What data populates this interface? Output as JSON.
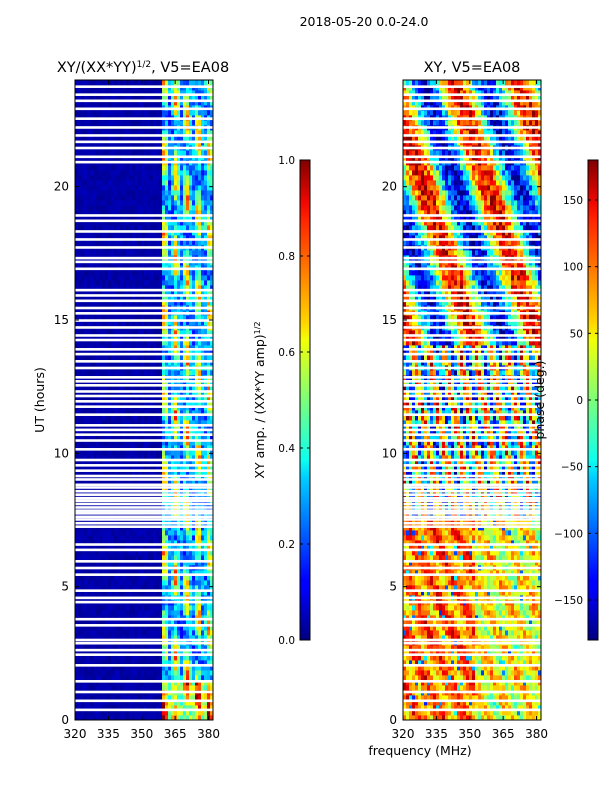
{
  "suptitle": "2018-05-20 0.0-24.0",
  "colors": {
    "white_gap": "#ffffff",
    "axis": "#000000"
  },
  "chart_data": [
    {
      "type": "heatmap",
      "title_main": "XY/(XX*YY)",
      "title_sup": "1/2",
      "title_tail": ", V5=EA08",
      "xlabel": "",
      "ylabel": "UT (hours)",
      "xlim": [
        320,
        382
      ],
      "ylim": [
        0,
        24
      ],
      "xticks": [
        320,
        335,
        350,
        365,
        380
      ],
      "yticks": [
        0,
        5,
        10,
        15,
        20
      ],
      "colorbar": {
        "label_main": "XY amp. / (XX*YY amp)",
        "label_sup": "1/2",
        "range": [
          0.0,
          1.0
        ],
        "ticks": [
          "0.0",
          "0.2",
          "0.4",
          "0.6",
          "0.8",
          "1.0"
        ],
        "tick_values": [
          0.0,
          0.2,
          0.4,
          0.6,
          0.8,
          1.0
        ]
      }
    },
    {
      "type": "heatmap",
      "title": "XY, V5=EA08",
      "xlabel": "frequency (MHz)",
      "ylabel": "",
      "xlim": [
        320,
        382
      ],
      "ylim": [
        0,
        24
      ],
      "xticks": [
        320,
        335,
        350,
        365,
        380
      ],
      "yticks": [
        0,
        5,
        10,
        15,
        20
      ],
      "colorbar": {
        "label": "phase (deg.)",
        "range": [
          -180,
          180
        ],
        "ticks": [
          "150",
          "100",
          "50",
          "0",
          "−50",
          "−100",
          "−150"
        ],
        "tick_values": [
          150,
          100,
          50,
          0,
          -50,
          -100,
          -150
        ]
      }
    }
  ],
  "flagged_hours": [
    0.38,
    0.72,
    1.05,
    1.45,
    2.05,
    2.45,
    2.62,
    2.88,
    3.0,
    3.55,
    3.78,
    4.42,
    4.58,
    4.85,
    5.45,
    5.7,
    5.95,
    6.38,
    6.58,
    7.25,
    7.38,
    7.52,
    7.62,
    7.75,
    7.85,
    7.97,
    8.1,
    8.22,
    8.32,
    8.45,
    8.58,
    8.72,
    8.82,
    9.02,
    9.15,
    9.35,
    9.55,
    9.75,
    10.15,
    10.48,
    10.7,
    10.88,
    11.05,
    11.45,
    11.75,
    11.95,
    12.15,
    12.32,
    12.55,
    12.7,
    12.85,
    13.2,
    13.45,
    13.72,
    13.9,
    14.25,
    14.42,
    14.72,
    14.98,
    15.25,
    15.45,
    15.72,
    15.92,
    16.12,
    16.92,
    17.18,
    17.32,
    17.72,
    18.02,
    18.32,
    18.72,
    18.92,
    20.92,
    21.12,
    21.45,
    21.68,
    21.92,
    22.22,
    22.55,
    22.92,
    23.22,
    23.45,
    23.75
  ]
}
